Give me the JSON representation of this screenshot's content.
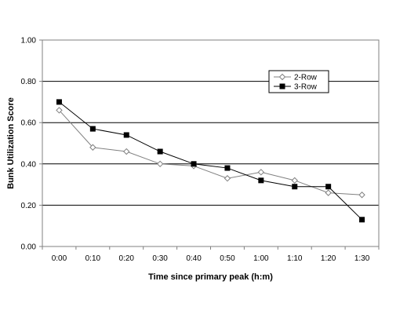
{
  "chart_data": {
    "type": "line",
    "title": "",
    "xlabel": "Time since primary peak (h:m)",
    "ylabel": "Bunk Utilization Score",
    "categories": [
      "0:00",
      "0:10",
      "0:20",
      "0:30",
      "0:40",
      "0:50",
      "1:00",
      "1:10",
      "1:20",
      "1:30"
    ],
    "ylim": [
      0,
      1.0
    ],
    "yticks": [
      "0.00",
      "0.20",
      "0.40",
      "0.60",
      "0.80",
      "1.00"
    ],
    "grid": true,
    "legend_position": "top-right",
    "series": [
      {
        "name": "2-Row",
        "marker": "open-diamond",
        "color": "#808080",
        "values": [
          0.66,
          0.48,
          0.46,
          0.4,
          0.39,
          0.33,
          0.36,
          0.32,
          0.26,
          0.25
        ]
      },
      {
        "name": "3-Row",
        "marker": "filled-square",
        "color": "#000000",
        "values": [
          0.7,
          0.57,
          0.54,
          0.46,
          0.4,
          0.38,
          0.32,
          0.29,
          0.29,
          0.13
        ]
      }
    ]
  }
}
